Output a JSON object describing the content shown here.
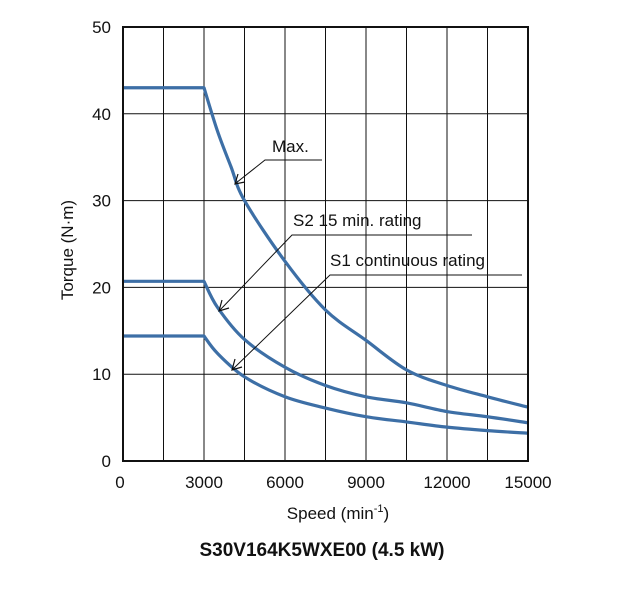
{
  "chart_data": {
    "type": "line",
    "title": "S30V164K5WXE00 (4.5 kW)",
    "xlabel": "Speed (min",
    "xlabel_sup": "-1",
    "xlabel_close": ")",
    "ylabel": "Torque (N·m)",
    "xlim": [
      0,
      15000
    ],
    "ylim": [
      0,
      50
    ],
    "xticks": [
      0,
      3000,
      6000,
      9000,
      12000,
      15000
    ],
    "yticks": [
      0,
      10,
      20,
      30,
      40,
      50
    ],
    "grid": true,
    "line_color": "#3d6fa6",
    "series": [
      {
        "name": "Max.",
        "x": [
          0,
          3000,
          3500,
          4000,
          4500,
          6000,
          7500,
          9000,
          10500,
          12000,
          13500,
          15000
        ],
        "y": [
          43,
          43,
          38,
          33.9,
          30,
          23,
          17.4,
          13.9,
          10.5,
          8.7,
          7.4,
          6.2
        ]
      },
      {
        "name": "S2 15 min. rating",
        "x": [
          0,
          3000,
          3500,
          4500,
          6000,
          7500,
          9000,
          10500,
          12000,
          13500,
          15000
        ],
        "y": [
          20.7,
          20.7,
          17.7,
          14,
          10.8,
          8.7,
          7.4,
          6.7,
          5.7,
          5.1,
          4.4
        ]
      },
      {
        "name": "S1 continuous rating",
        "x": [
          0,
          3000,
          3500,
          4500,
          6000,
          7500,
          9000,
          10500,
          12000,
          13500,
          15000
        ],
        "y": [
          14.4,
          14.4,
          12.4,
          9.7,
          7.4,
          6.1,
          5.1,
          4.5,
          3.9,
          3.5,
          3.2
        ]
      }
    ]
  }
}
